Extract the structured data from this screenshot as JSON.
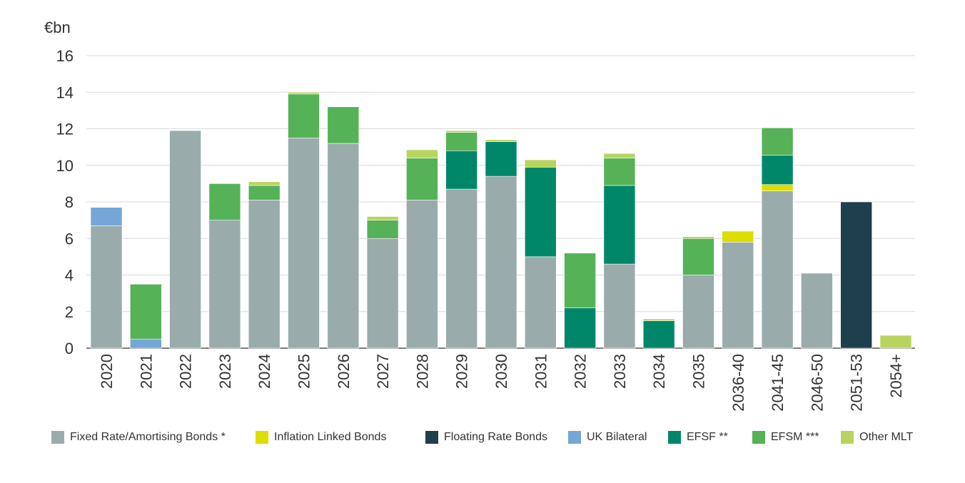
{
  "chart_data": {
    "type": "stacked-bar",
    "unit_label": "€bn",
    "ylim": [
      0,
      16
    ],
    "yticks": [
      0,
      2,
      4,
      6,
      8,
      10,
      12,
      14,
      16
    ],
    "categories": [
      "2020",
      "2021",
      "2022",
      "2023",
      "2024",
      "2025",
      "2026",
      "2027",
      "2028",
      "2029",
      "2030",
      "2031",
      "2032",
      "2033",
      "2034",
      "2035",
      "2036-40",
      "2041-45",
      "2046-50",
      "2051-53",
      "2054+"
    ],
    "series": [
      {
        "name": "Fixed Rate/Amortising Bonds *",
        "color": "#9aabab",
        "values": [
          6.7,
          0,
          11.9,
          7.0,
          8.1,
          11.5,
          11.2,
          6.0,
          8.1,
          8.7,
          9.4,
          5.0,
          0,
          4.6,
          0,
          4.0,
          5.8,
          8.6,
          4.1,
          0,
          0
        ]
      },
      {
        "name": "Inflation Linked Bonds",
        "color": "#dddd00",
        "values": [
          0,
          0,
          0,
          0,
          0,
          0,
          0,
          0,
          0,
          0,
          0,
          0,
          0,
          0,
          0,
          0,
          0.6,
          0.35,
          0,
          0,
          0
        ]
      },
      {
        "name": "Floating Rate Bonds",
        "color": "#1e3f4c",
        "values": [
          0,
          0,
          0,
          0,
          0,
          0,
          0,
          0,
          0,
          0,
          0,
          0,
          0,
          0,
          0,
          0,
          0,
          0,
          0,
          8.0,
          0
        ]
      },
      {
        "name": "UK Bilateral",
        "color": "#75a6d8",
        "values": [
          1.0,
          0.5,
          0,
          0,
          0,
          0,
          0,
          0,
          0,
          0,
          0,
          0,
          0,
          0,
          0,
          0,
          0,
          0,
          0,
          0,
          0
        ]
      },
      {
        "name": "EFSF **",
        "color": "#00876a",
        "values": [
          0,
          0,
          0,
          0,
          0,
          0,
          0,
          0,
          0,
          2.1,
          1.9,
          4.9,
          2.2,
          4.3,
          1.5,
          0,
          0,
          1.6,
          0,
          0,
          0
        ]
      },
      {
        "name": "EFSM ***",
        "color": "#55b257",
        "values": [
          0,
          3.0,
          0,
          2.0,
          0.8,
          2.4,
          2.0,
          1.0,
          2.3,
          1.0,
          0,
          0,
          3.0,
          1.5,
          0,
          2.0,
          0,
          1.5,
          0,
          0,
          0
        ]
      },
      {
        "name": "Other MLT",
        "color": "#b8d45e",
        "values": [
          0,
          0,
          0,
          0,
          0.2,
          0.1,
          0,
          0.2,
          0.45,
          0.1,
          0.1,
          0.4,
          0,
          0.25,
          0.1,
          0.1,
          0,
          0,
          0,
          0,
          0.7
        ]
      }
    ]
  },
  "legend": {
    "items": [
      {
        "label": "Fixed Rate/Amortising Bonds *",
        "color": "#9aabab"
      },
      {
        "label": "Inflation Linked Bonds",
        "color": "#dddd00"
      },
      {
        "label": "Floating Rate Bonds",
        "color": "#1e3f4c"
      },
      {
        "label": "UK Bilateral",
        "color": "#75a6d8"
      },
      {
        "label": "EFSF **",
        "color": "#00876a"
      },
      {
        "label": "EFSM ***",
        "color": "#55b257"
      },
      {
        "label": "Other MLT",
        "color": "#b8d45e"
      }
    ]
  }
}
